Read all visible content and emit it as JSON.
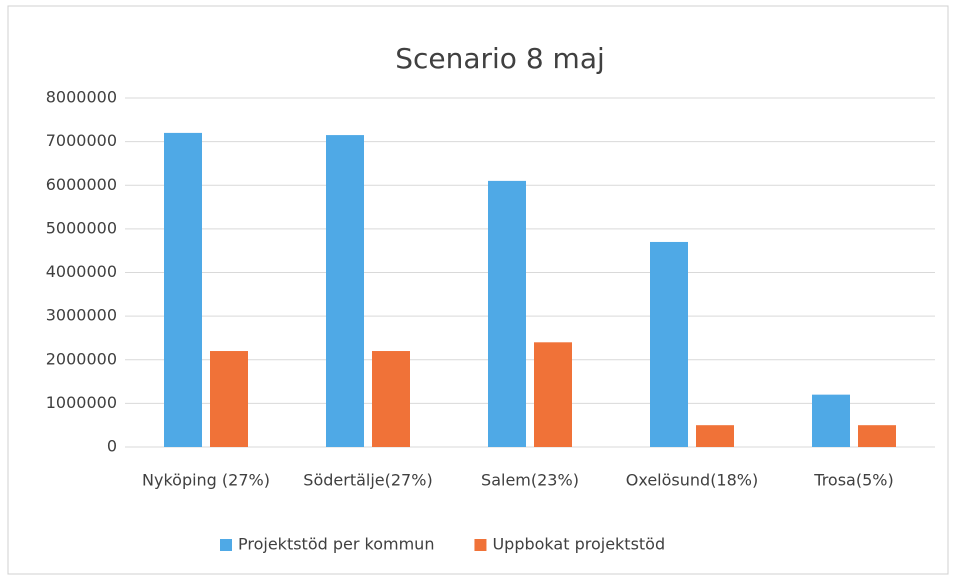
{
  "chart_data": {
    "type": "bar",
    "title": "Scenario 8 maj",
    "categories": [
      "Nyköping (27%)",
      "Södertälje(27%)",
      "Salem(23%)",
      "Oxelösund(18%)",
      "Trosa(5%)"
    ],
    "series": [
      {
        "name": "Projektstöd per kommun",
        "color": "#4fa9e6",
        "values": [
          7200000,
          7150000,
          6100000,
          4700000,
          1200000
        ]
      },
      {
        "name": "Uppbokat projektstöd",
        "color": "#f07238",
        "values": [
          2200000,
          2200000,
          2400000,
          500000,
          500000
        ]
      }
    ],
    "ylim": [
      0,
      8000000
    ],
    "yticks": [
      0,
      1000000,
      2000000,
      3000000,
      4000000,
      5000000,
      6000000,
      7000000,
      8000000
    ],
    "grid": true,
    "legend": "bottom"
  }
}
